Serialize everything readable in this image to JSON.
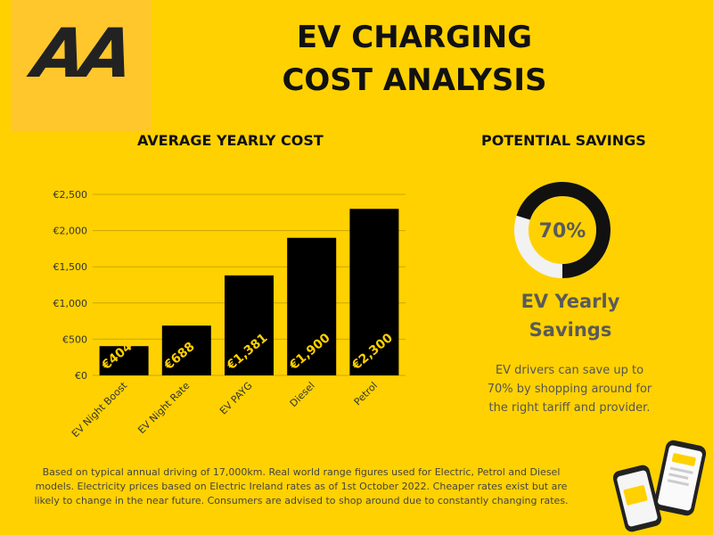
{
  "logo": {
    "text": "AA"
  },
  "title": {
    "line1": "EV CHARGING",
    "line2": "COST ANALYSIS"
  },
  "sections": {
    "yearly": "AVERAGE YEARLY COST",
    "savings": "POTENTIAL SAVINGS"
  },
  "chart_data": {
    "type": "bar",
    "title": "AVERAGE YEARLY COST",
    "categories": [
      "EV Night Boost",
      "EV Night Rate",
      "EV PAYG",
      "Diesel",
      "Petrol"
    ],
    "values": [
      404,
      688,
      1381,
      1900,
      2300
    ],
    "data_labels": [
      "€404",
      "€688",
      "€1,381",
      "€1,900",
      "€2,300"
    ],
    "ylim": [
      0,
      2500
    ],
    "yticks": [
      0,
      500,
      1000,
      1500,
      2000,
      2500
    ],
    "ytick_labels": [
      "€0",
      "€500",
      "€1,000",
      "€1,500",
      "€2,000",
      "€2,500"
    ],
    "xlabel": "",
    "ylabel": "",
    "bar_color": "#000000",
    "grid": true
  },
  "savings": {
    "percent": 70,
    "percent_label": "70%",
    "title_line1": "EV Yearly",
    "title_line2": "Savings",
    "description": "EV drivers can save up to 70% by shopping around for the right tariff and provider."
  },
  "footnote": "Based on typical annual driving of 17,000km. Real world range figures used for Electric, Petrol and Diesel models. Electricity prices based on Electric Ireland rates as of 1st October 2022. Cheaper rates exist but are likely to change in the near future. Consumers are advised to shop around due to constantly changing rates.",
  "colors": {
    "background": "#FFD100",
    "text": "#111111",
    "muted": "#5a5a5a",
    "ring_track": "#F2F2F2",
    "ring_fill": "#111111"
  }
}
